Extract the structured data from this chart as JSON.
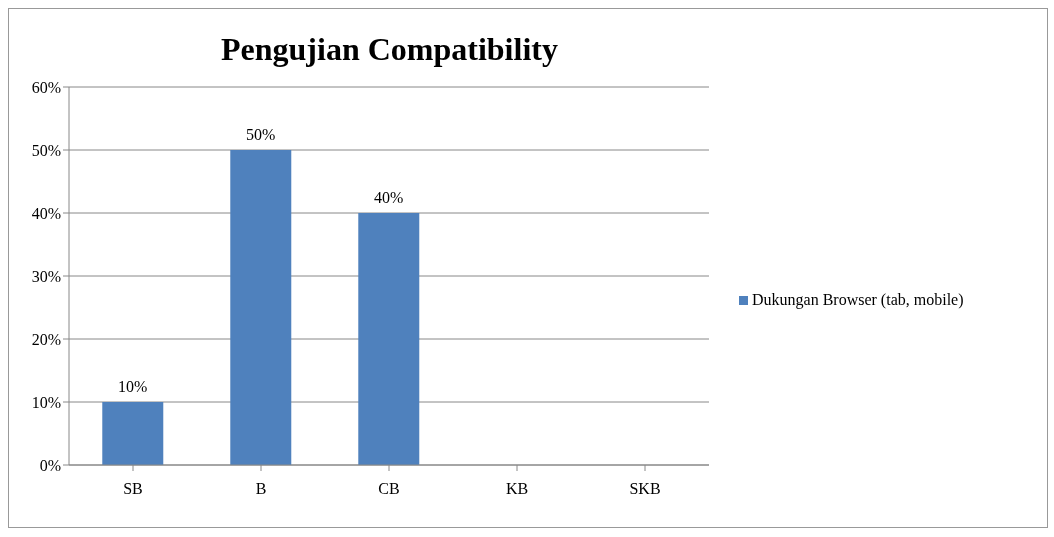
{
  "chart_data": {
    "type": "bar",
    "title": "Pengujian Compatibility",
    "categories": [
      "SB",
      "B",
      "CB",
      "KB",
      "SKB"
    ],
    "series": [
      {
        "name": "Dukungan Browser (tab, mobile)",
        "color": "#4f81bd",
        "values": [
          10,
          50,
          40,
          0,
          0
        ],
        "value_labels": [
          "10%",
          "50%",
          "40%",
          null,
          null
        ]
      }
    ],
    "ylim": [
      0,
      60
    ],
    "yticks": [
      {
        "value": 0,
        "label": "0%"
      },
      {
        "value": 10,
        "label": "10%"
      },
      {
        "value": 20,
        "label": "20%"
      },
      {
        "value": 30,
        "label": "30%"
      },
      {
        "value": 40,
        "label": "40%"
      },
      {
        "value": 50,
        "label": "50%"
      },
      {
        "value": 60,
        "label": "60%"
      }
    ],
    "grid": "y",
    "legend": "right"
  }
}
